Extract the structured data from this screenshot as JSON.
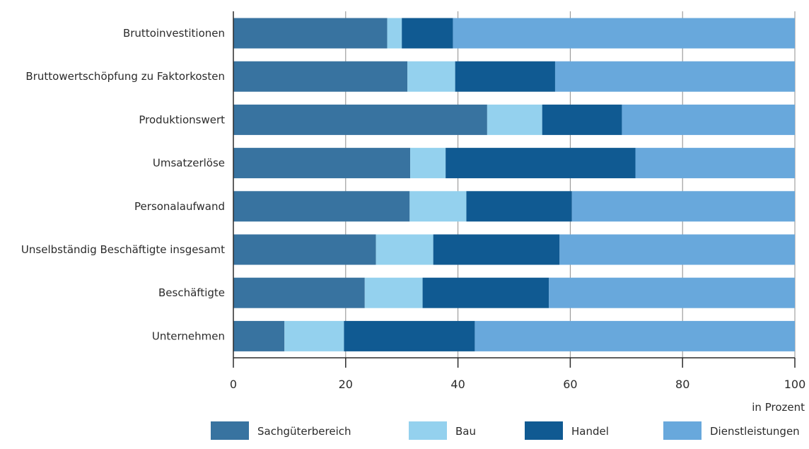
{
  "chart_data": {
    "type": "bar",
    "orientation": "horizontal",
    "stacked": true,
    "title": "",
    "xlabel": "in Prozent",
    "ylabel": "",
    "xlim": [
      0,
      100
    ],
    "xticks": [
      0,
      20,
      40,
      60,
      80,
      100
    ],
    "grid": true,
    "legend_position": "bottom",
    "categories": [
      "Bruttoinvestitionen",
      "Bruttowertschöpfung zu Faktorkosten",
      "Produktionswert",
      "Umsatzerlöse",
      "Personalaufwand",
      "Unselbständig Beschäftigte insgesamt",
      "Beschäftigte",
      "Unternehmen"
    ],
    "series": [
      {
        "name": "Sachgüterbereich",
        "color": "#3873a0",
        "values": [
          27.4,
          31.0,
          45.2,
          31.5,
          31.4,
          25.4,
          23.4,
          9.1
        ]
      },
      {
        "name": "Bau",
        "color": "#94d1ee",
        "values": [
          2.6,
          8.5,
          9.8,
          6.3,
          10.1,
          10.2,
          10.3,
          10.6
        ]
      },
      {
        "name": "Handel",
        "color": "#105a92",
        "values": [
          9.1,
          17.8,
          14.2,
          33.8,
          18.8,
          22.5,
          22.5,
          23.3
        ]
      },
      {
        "name": "Dienstleistungen",
        "color": "#68a8dc",
        "values": [
          60.9,
          42.7,
          30.8,
          28.4,
          39.7,
          41.9,
          43.8,
          57.0
        ]
      }
    ]
  }
}
